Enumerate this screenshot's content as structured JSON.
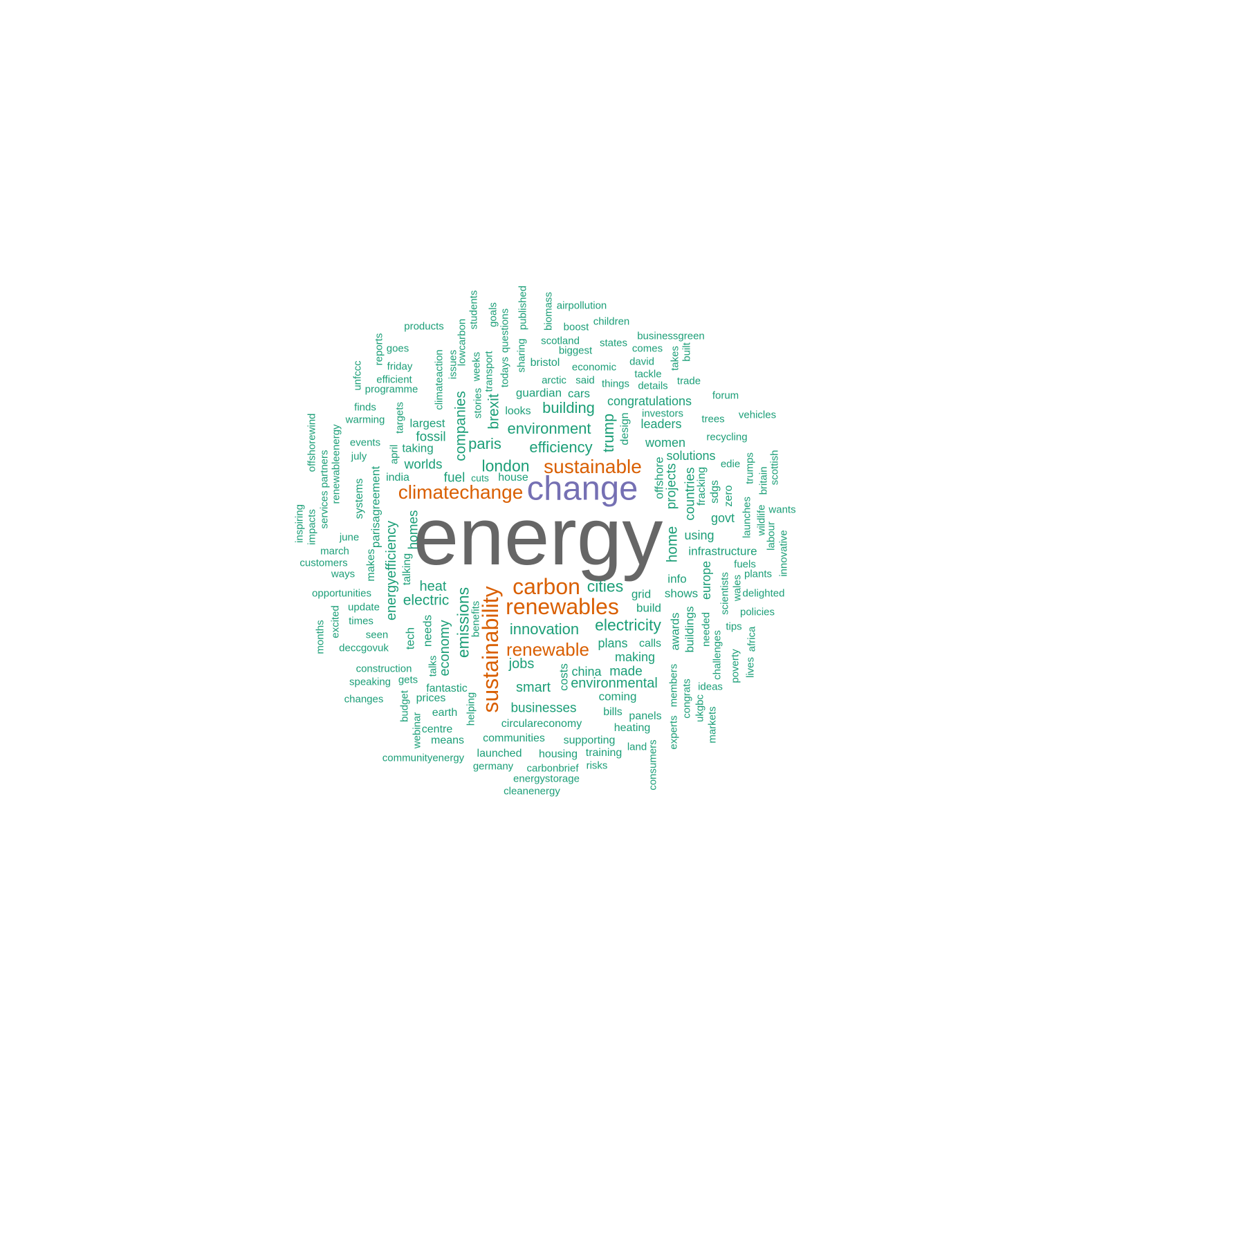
{
  "colors": {
    "background": "#ffffff",
    "tier_top": "#666666",
    "tier_second": "#7570b3",
    "tier_third": "#d95f02",
    "tier_rest": "#1b9e77"
  },
  "words": [
    {
      "text": "energy",
      "tier": "top",
      "vertical": false
    },
    {
      "text": "change",
      "tier": "second",
      "vertical": false
    },
    {
      "text": "sustainability",
      "tier": "third",
      "vertical": true
    },
    {
      "text": "renewables",
      "tier": "third",
      "vertical": false
    },
    {
      "text": "carbon",
      "tier": "third",
      "vertical": false
    },
    {
      "text": "climatechange",
      "tier": "third",
      "vertical": false
    },
    {
      "text": "sustainable",
      "tier": "third",
      "vertical": false
    },
    {
      "text": "renewable",
      "tier": "third",
      "vertical": false
    },
    {
      "text": "cities",
      "tier": "rest",
      "vertical": false
    },
    {
      "text": "electricity",
      "tier": "rest",
      "vertical": false
    },
    {
      "text": "innovation",
      "tier": "rest",
      "vertical": false
    },
    {
      "text": "emissions",
      "tier": "rest",
      "vertical": true
    },
    {
      "text": "london",
      "tier": "rest",
      "vertical": false
    },
    {
      "text": "efficiency",
      "tier": "rest",
      "vertical": false
    },
    {
      "text": "environment",
      "tier": "rest",
      "vertical": false
    },
    {
      "text": "building",
      "tier": "rest",
      "vertical": false
    },
    {
      "text": "paris",
      "tier": "rest",
      "vertical": false
    },
    {
      "text": "trump",
      "tier": "rest",
      "vertical": true
    },
    {
      "text": "companies",
      "tier": "rest",
      "vertical": true
    },
    {
      "text": "brexit",
      "tier": "rest",
      "vertical": true
    },
    {
      "text": "energyefficiency",
      "tier": "rest",
      "vertical": true
    },
    {
      "text": "electric",
      "tier": "rest",
      "vertical": false
    },
    {
      "text": "heat",
      "tier": "rest",
      "vertical": false
    },
    {
      "text": "economy",
      "tier": "rest",
      "vertical": true
    },
    {
      "text": "home",
      "tier": "rest",
      "vertical": true
    },
    {
      "text": "homes",
      "tier": "rest",
      "vertical": true
    },
    {
      "text": "smart",
      "tier": "rest",
      "vertical": false
    },
    {
      "text": "jobs",
      "tier": "rest",
      "vertical": false
    },
    {
      "text": "environmental",
      "tier": "rest",
      "vertical": false
    },
    {
      "text": "businesses",
      "tier": "rest",
      "vertical": false
    },
    {
      "text": "worlds",
      "tier": "rest",
      "vertical": false
    },
    {
      "text": "fuel",
      "tier": "rest",
      "vertical": false
    },
    {
      "text": "fossil",
      "tier": "rest",
      "vertical": false
    },
    {
      "text": "projects",
      "tier": "rest",
      "vertical": true
    },
    {
      "text": "countries",
      "tier": "rest",
      "vertical": true
    },
    {
      "text": "made",
      "tier": "rest",
      "vertical": false
    },
    {
      "text": "making",
      "tier": "rest",
      "vertical": false
    },
    {
      "text": "plans",
      "tier": "rest",
      "vertical": false
    },
    {
      "text": "china",
      "tier": "rest",
      "vertical": false
    },
    {
      "text": "women",
      "tier": "rest",
      "vertical": false
    },
    {
      "text": "solutions",
      "tier": "rest",
      "vertical": false
    },
    {
      "text": "using",
      "tier": "rest",
      "vertical": false
    },
    {
      "text": "govt",
      "tier": "rest",
      "vertical": false
    },
    {
      "text": "congratulations",
      "tier": "rest",
      "vertical": false
    },
    {
      "text": "leaders",
      "tier": "rest",
      "vertical": false
    },
    {
      "text": "europe",
      "tier": "rest",
      "vertical": true
    },
    {
      "text": "infrastructure",
      "tier": "rest",
      "vertical": false
    },
    {
      "text": "shows",
      "tier": "rest",
      "vertical": false
    },
    {
      "text": "buildings",
      "tier": "rest",
      "vertical": true
    },
    {
      "text": "awards",
      "tier": "rest",
      "vertical": true
    },
    {
      "text": "coming",
      "tier": "rest",
      "vertical": false
    },
    {
      "text": "parisagreement",
      "tier": "rest",
      "vertical": true
    },
    {
      "text": "cars",
      "tier": "rest",
      "vertical": false
    },
    {
      "text": "guardian",
      "tier": "rest",
      "vertical": false
    },
    {
      "text": "taking",
      "tier": "rest",
      "vertical": false
    },
    {
      "text": "largest",
      "tier": "rest",
      "vertical": false
    },
    {
      "text": "offshore",
      "tier": "rest",
      "vertical": true
    },
    {
      "text": "grid",
      "tier": "rest",
      "vertical": false
    },
    {
      "text": "build",
      "tier": "rest",
      "vertical": false
    },
    {
      "text": "info",
      "tier": "rest",
      "vertical": false
    },
    {
      "text": "costs",
      "tier": "rest",
      "vertical": true
    },
    {
      "text": "tech",
      "tier": "rest",
      "vertical": true
    },
    {
      "text": "needs",
      "tier": "rest",
      "vertical": true
    },
    {
      "text": "talks",
      "tier": "rest",
      "vertical": true
    },
    {
      "text": "fantastic",
      "tier": "rest",
      "vertical": false
    },
    {
      "text": "circulareconomy",
      "tier": "rest",
      "vertical": false
    },
    {
      "text": "heating",
      "tier": "rest",
      "vertical": false
    },
    {
      "text": "panels",
      "tier": "rest",
      "vertical": false
    },
    {
      "text": "bills",
      "tier": "rest",
      "vertical": false
    },
    {
      "text": "calls",
      "tier": "rest",
      "vertical": false
    },
    {
      "text": "design",
      "tier": "rest",
      "vertical": true
    },
    {
      "text": "looks",
      "tier": "rest",
      "vertical": false
    },
    {
      "text": "cuts",
      "tier": "rest",
      "vertical": false
    },
    {
      "text": "house",
      "tier": "rest",
      "vertical": false
    },
    {
      "text": "india",
      "tier": "rest",
      "vertical": false
    },
    {
      "text": "talking",
      "tier": "rest",
      "vertical": true
    },
    {
      "text": "makes",
      "tier": "rest",
      "vertical": true
    },
    {
      "text": "systems",
      "tier": "rest",
      "vertical": true
    },
    {
      "text": "fracking",
      "tier": "rest",
      "vertical": true
    },
    {
      "text": "sdgs",
      "tier": "rest",
      "vertical": true
    },
    {
      "text": "zero",
      "tier": "rest",
      "vertical": true
    },
    {
      "text": "benefits",
      "tier": "rest",
      "vertical": true
    },
    {
      "text": "helping",
      "tier": "rest",
      "vertical": true
    },
    {
      "text": "earth",
      "tier": "rest",
      "vertical": false
    },
    {
      "text": "prices",
      "tier": "rest",
      "vertical": false
    },
    {
      "text": "centre",
      "tier": "rest",
      "vertical": false
    },
    {
      "text": "means",
      "tier": "rest",
      "vertical": false
    },
    {
      "text": "communities",
      "tier": "rest",
      "vertical": false
    },
    {
      "text": "supporting",
      "tier": "rest",
      "vertical": false
    },
    {
      "text": "training",
      "tier": "rest",
      "vertical": false
    },
    {
      "text": "housing",
      "tier": "rest",
      "vertical": false
    },
    {
      "text": "launched",
      "tier": "rest",
      "vertical": false
    },
    {
      "text": "germany",
      "tier": "rest",
      "vertical": false
    },
    {
      "text": "carbonbrief",
      "tier": "rest",
      "vertical": false
    },
    {
      "text": "risks",
      "tier": "rest",
      "vertical": false
    },
    {
      "text": "energystorage",
      "tier": "rest",
      "vertical": false
    },
    {
      "text": "cleanenergy",
      "tier": "rest",
      "vertical": false
    },
    {
      "text": "communityenergy",
      "tier": "rest",
      "vertical": false
    },
    {
      "text": "land",
      "tier": "rest",
      "vertical": false
    },
    {
      "text": "consumers",
      "tier": "rest",
      "vertical": true
    },
    {
      "text": "experts",
      "tier": "rest",
      "vertical": true
    },
    {
      "text": "members",
      "tier": "rest",
      "vertical": true
    },
    {
      "text": "congrats",
      "tier": "rest",
      "vertical": true
    },
    {
      "text": "ukgbc",
      "tier": "rest",
      "vertical": true
    },
    {
      "text": "markets",
      "tier": "rest",
      "vertical": true
    },
    {
      "text": "ideas",
      "tier": "rest",
      "vertical": false
    },
    {
      "text": "challenges",
      "tier": "rest",
      "vertical": true
    },
    {
      "text": "needed",
      "tier": "rest",
      "vertical": true
    },
    {
      "text": "scientists",
      "tier": "rest",
      "vertical": true
    },
    {
      "text": "wales",
      "tier": "rest",
      "vertical": true
    },
    {
      "text": "poverty",
      "tier": "rest",
      "vertical": true
    },
    {
      "text": "lives",
      "tier": "rest",
      "vertical": true
    },
    {
      "text": "africa",
      "tier": "rest",
      "vertical": true
    },
    {
      "text": "tips",
      "tier": "rest",
      "vertical": false
    },
    {
      "text": "policies",
      "tier": "rest",
      "vertical": false
    },
    {
      "text": "delighted",
      "tier": "rest",
      "vertical": false
    },
    {
      "text": "fuels",
      "tier": "rest",
      "vertical": false
    },
    {
      "text": "plants",
      "tier": "rest",
      "vertical": false
    },
    {
      "text": "innovative",
      "tier": "rest",
      "vertical": true
    },
    {
      "text": "wants",
      "tier": "rest",
      "vertical": false
    },
    {
      "text": "labour",
      "tier": "rest",
      "vertical": true
    },
    {
      "text": "wildlife",
      "tier": "rest",
      "vertical": true
    },
    {
      "text": "launches",
      "tier": "rest",
      "vertical": true
    },
    {
      "text": "britain",
      "tier": "rest",
      "vertical": true
    },
    {
      "text": "scottish",
      "tier": "rest",
      "vertical": true
    },
    {
      "text": "trumps",
      "tier": "rest",
      "vertical": true
    },
    {
      "text": "edie",
      "tier": "rest",
      "vertical": false
    },
    {
      "text": "recycling",
      "tier": "rest",
      "vertical": false
    },
    {
      "text": "vehicles",
      "tier": "rest",
      "vertical": false
    },
    {
      "text": "trees",
      "tier": "rest",
      "vertical": false
    },
    {
      "text": "forum",
      "tier": "rest",
      "vertical": false
    },
    {
      "text": "trade",
      "tier": "rest",
      "vertical": false
    },
    {
      "text": "built",
      "tier": "rest",
      "vertical": true
    },
    {
      "text": "takes",
      "tier": "rest",
      "vertical": true
    },
    {
      "text": "businessgreen",
      "tier": "rest",
      "vertical": false
    },
    {
      "text": "comes",
      "tier": "rest",
      "vertical": false
    },
    {
      "text": "david",
      "tier": "rest",
      "vertical": false
    },
    {
      "text": "tackle",
      "tier": "rest",
      "vertical": false
    },
    {
      "text": "details",
      "tier": "rest",
      "vertical": false
    },
    {
      "text": "things",
      "tier": "rest",
      "vertical": false
    },
    {
      "text": "investors",
      "tier": "rest",
      "vertical": false
    },
    {
      "text": "said",
      "tier": "rest",
      "vertical": false
    },
    {
      "text": "arctic",
      "tier": "rest",
      "vertical": false
    },
    {
      "text": "economic",
      "tier": "rest",
      "vertical": false
    },
    {
      "text": "bristol",
      "tier": "rest",
      "vertical": false
    },
    {
      "text": "biggest",
      "tier": "rest",
      "vertical": false
    },
    {
      "text": "scotland",
      "tier": "rest",
      "vertical": false
    },
    {
      "text": "states",
      "tier": "rest",
      "vertical": false
    },
    {
      "text": "boost",
      "tier": "rest",
      "vertical": false
    },
    {
      "text": "children",
      "tier": "rest",
      "vertical": false
    },
    {
      "text": "airpollution",
      "tier": "rest",
      "vertical": false
    },
    {
      "text": "biomass",
      "tier": "rest",
      "vertical": true
    },
    {
      "text": "published",
      "tier": "rest",
      "vertical": true
    },
    {
      "text": "sharing",
      "tier": "rest",
      "vertical": true
    },
    {
      "text": "questions",
      "tier": "rest",
      "vertical": true
    },
    {
      "text": "todays",
      "tier": "rest",
      "vertical": true
    },
    {
      "text": "goals",
      "tier": "rest",
      "vertical": true
    },
    {
      "text": "transport",
      "tier": "rest",
      "vertical": true
    },
    {
      "text": "students",
      "tier": "rest",
      "vertical": true
    },
    {
      "text": "weeks",
      "tier": "rest",
      "vertical": true
    },
    {
      "text": "stories",
      "tier": "rest",
      "vertical": true
    },
    {
      "text": "lowcarbon",
      "tier": "rest",
      "vertical": true
    },
    {
      "text": "issues",
      "tier": "rest",
      "vertical": true
    },
    {
      "text": "climateaction",
      "tier": "rest",
      "vertical": true
    },
    {
      "text": "products",
      "tier": "rest",
      "vertical": false
    },
    {
      "text": "reports",
      "tier": "rest",
      "vertical": true
    },
    {
      "text": "goes",
      "tier": "rest",
      "vertical": false
    },
    {
      "text": "friday",
      "tier": "rest",
      "vertical": false
    },
    {
      "text": "efficient",
      "tier": "rest",
      "vertical": false
    },
    {
      "text": "programme",
      "tier": "rest",
      "vertical": false
    },
    {
      "text": "unfccc",
      "tier": "rest",
      "vertical": true
    },
    {
      "text": "finds",
      "tier": "rest",
      "vertical": false
    },
    {
      "text": "warming",
      "tier": "rest",
      "vertical": false
    },
    {
      "text": "targets",
      "tier": "rest",
      "vertical": true
    },
    {
      "text": "events",
      "tier": "rest",
      "vertical": false
    },
    {
      "text": "april",
      "tier": "rest",
      "vertical": true
    },
    {
      "text": "july",
      "tier": "rest",
      "vertical": false
    },
    {
      "text": "offshorewind",
      "tier": "rest",
      "vertical": true
    },
    {
      "text": "renewableenergy",
      "tier": "rest",
      "vertical": true
    },
    {
      "text": "partners",
      "tier": "rest",
      "vertical": true
    },
    {
      "text": "services",
      "tier": "rest",
      "vertical": true
    },
    {
      "text": "impacts",
      "tier": "rest",
      "vertical": true
    },
    {
      "text": "inspiring",
      "tier": "rest",
      "vertical": true
    },
    {
      "text": "june",
      "tier": "rest",
      "vertical": false
    },
    {
      "text": "march",
      "tier": "rest",
      "vertical": false
    },
    {
      "text": "customers",
      "tier": "rest",
      "vertical": false
    },
    {
      "text": "ways",
      "tier": "rest",
      "vertical": false
    },
    {
      "text": "opportunities",
      "tier": "rest",
      "vertical": false
    },
    {
      "text": "update",
      "tier": "rest",
      "vertical": false
    },
    {
      "text": "times",
      "tier": "rest",
      "vertical": false
    },
    {
      "text": "seen",
      "tier": "rest",
      "vertical": false
    },
    {
      "text": "excited",
      "tier": "rest",
      "vertical": true
    },
    {
      "text": "months",
      "tier": "rest",
      "vertical": true
    },
    {
      "text": "deccgovuk",
      "tier": "rest",
      "vertical": false
    },
    {
      "text": "construction",
      "tier": "rest",
      "vertical": false
    },
    {
      "text": "speaking",
      "tier": "rest",
      "vertical": false
    },
    {
      "text": "gets",
      "tier": "rest",
      "vertical": false
    },
    {
      "text": "changes",
      "tier": "rest",
      "vertical": false
    },
    {
      "text": "budget",
      "tier": "rest",
      "vertical": true
    },
    {
      "text": "webinar",
      "tier": "rest",
      "vertical": true
    }
  ]
}
